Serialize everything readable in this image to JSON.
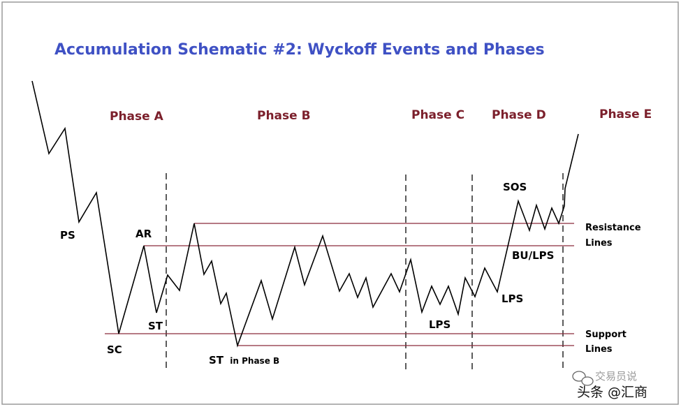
{
  "title": "Accumulation Schematic #2: Wyckoff Events and Phases",
  "phases": [
    "Phase A",
    "Phase B",
    "Phase C",
    "Phase D",
    "Phase E"
  ],
  "events": {
    "ps": "PS",
    "sc": "SC",
    "ar": "AR",
    "st": "ST",
    "st_phase_b_main": "ST",
    "st_phase_b_sub": "in Phase B",
    "lps_c": "LPS",
    "lps_d": "LPS",
    "sos": "SOS",
    "bu_lps": "BU/LPS"
  },
  "lines": {
    "resistance_1": "Resistance",
    "resistance_2": "Lines",
    "support_1": "Support",
    "support_2": "Lines"
  },
  "watermark": {
    "top": "交易员说",
    "bottom": "头条 @汇商"
  },
  "colors": {
    "title": "#3f51c4",
    "phase": "#7b1f2b",
    "level_line": "#8a2a3a",
    "price": "#000000",
    "divider": "#333333",
    "border": "#9a9a9a"
  }
}
